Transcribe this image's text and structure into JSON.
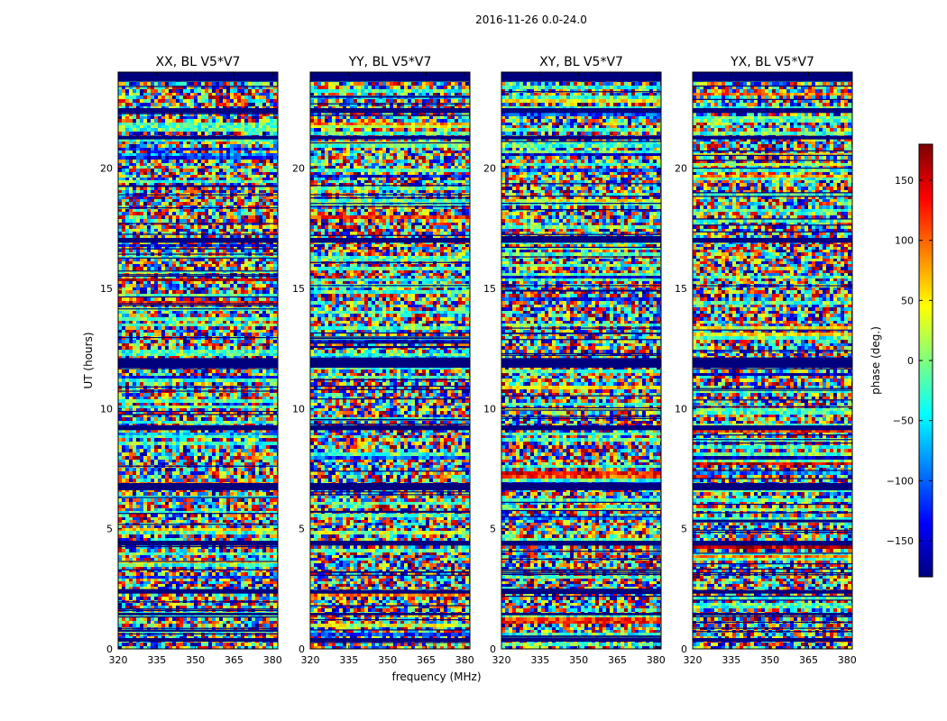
{
  "figure_title": "2016-11-26 0.0-24.0",
  "colorbar": {
    "label": "phase (deg.)",
    "range": [
      -180,
      180
    ],
    "ticks": [
      150,
      100,
      50,
      0,
      -50,
      -100,
      -150
    ],
    "tick_labels": [
      "150",
      "100",
      "50",
      "0",
      "−50",
      "−100",
      "−150"
    ],
    "colormap": "jet",
    "colors": [
      "#00007f",
      "#0000ff",
      "#007fff",
      "#00ffff",
      "#7fff7f",
      "#ffff00",
      "#ff7f00",
      "#ff0000",
      "#7f0000"
    ]
  },
  "chart_data": {
    "type": "heatmap",
    "title": "2016-11-26 0.0-24.0",
    "xlabel": "frequency (MHz)",
    "ylabel": "UT (hours)",
    "xlim": [
      320,
      382
    ],
    "ylim": [
      0,
      24
    ],
    "xticks": [
      320,
      335,
      350,
      365,
      380
    ],
    "yticks": [
      0,
      5,
      10,
      15,
      20
    ],
    "zlabel": "phase (deg.)",
    "zlim": [
      -180,
      180
    ],
    "panels": [
      {
        "title": "XX, BL V5*V7",
        "polarization": "XX",
        "baseline": "V5*V7"
      },
      {
        "title": "YY, BL V5*V7",
        "polarization": "YY",
        "baseline": "V5*V7"
      },
      {
        "title": "XY, BL V5*V7",
        "polarization": "XY",
        "baseline": "V5*V7"
      },
      {
        "title": "YX, BL V5*V7",
        "polarization": "YX",
        "baseline": "V5*V7"
      }
    ],
    "flagged_bands_ut_hours": [
      [
        0.3,
        0.45
      ],
      [
        1.4,
        1.5
      ],
      [
        2.3,
        2.45
      ],
      [
        4.3,
        4.5
      ],
      [
        6.6,
        6.9
      ],
      [
        9.1,
        9.3
      ],
      [
        11.7,
        12.1
      ],
      [
        16.9,
        17.1
      ],
      [
        21.2,
        21.35
      ],
      [
        22.3,
        22.5
      ],
      [
        23.6,
        24.0
      ]
    ],
    "notes": "Visibility phase vs frequency and UT; mostly noise-like phases spanning -180 to 180 deg with horizontal banded structure."
  }
}
